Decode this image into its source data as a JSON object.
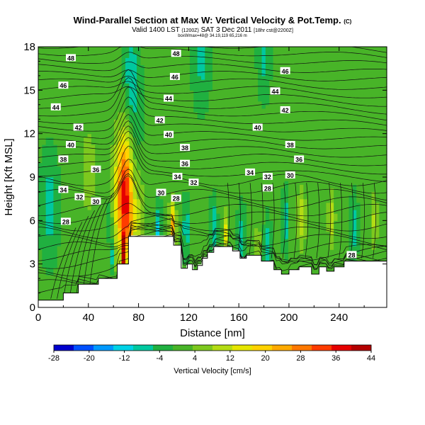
{
  "chart_data": {
    "type": "cross-section",
    "title": "Wind-Parallel Section at Max W: Vertical Velocity & Pot.Temp.",
    "title_mark": "(C)",
    "subtitle_main": "Valid 1400 LST",
    "subtitle_small1": "(1200Z)",
    "subtitle_day": "SAT 3 Dec 2011",
    "subtitle_small2": "[18hr cst@2200Z]",
    "subnote": "boxWmax=48@ 34.19,119 65,216 m",
    "xlabel": "Distance [nm]",
    "ylabel": "Height [Kft MSL]",
    "xlim": [
      0,
      278
    ],
    "ylim": [
      0,
      18
    ],
    "xticks": [
      "0",
      "40",
      "80",
      "120",
      "160",
      "200",
      "240"
    ],
    "yticks": [
      "0",
      "3",
      "6",
      "9",
      "12",
      "15",
      "18"
    ],
    "colorbar": {
      "label": "Vertical Velocity [cm/s]",
      "ticks": [
        "-28",
        "-20",
        "-12",
        "-4",
        "4",
        "12",
        "20",
        "28",
        "36",
        "44"
      ],
      "colors": [
        "#0000cd",
        "#0050ff",
        "#0099ff",
        "#00d2e6",
        "#00c8a0",
        "#20b040",
        "#48b428",
        "#7dc81e",
        "#b4dc14",
        "#e6e600",
        "#ffd200",
        "#ffaa00",
        "#ff7800",
        "#ff3c00",
        "#e60000",
        "#b40000"
      ]
    },
    "terrain": [
      [
        0,
        0.5
      ],
      [
        20,
        0.5
      ],
      [
        20,
        1
      ],
      [
        32,
        1
      ],
      [
        32,
        1.6
      ],
      [
        48,
        1.6
      ],
      [
        48,
        2
      ],
      [
        63,
        2
      ],
      [
        63,
        3
      ],
      [
        72,
        3
      ],
      [
        72,
        4.9
      ],
      [
        90,
        4.9
      ],
      [
        100,
        4.9
      ],
      [
        100,
        4.9
      ],
      [
        108,
        4.9
      ],
      [
        108,
        4.3
      ],
      [
        114,
        4.3
      ],
      [
        114,
        2.7
      ],
      [
        119,
        2.7
      ],
      [
        119,
        3.0
      ],
      [
        123,
        3.0
      ],
      [
        123,
        2.6
      ],
      [
        127,
        2.6
      ],
      [
        127,
        2.9
      ],
      [
        131,
        2.9
      ],
      [
        131,
        3.4
      ],
      [
        135,
        3.4
      ],
      [
        135,
        3.8
      ],
      [
        140,
        3.8
      ],
      [
        140,
        4.2
      ],
      [
        155,
        4.2
      ],
      [
        155,
        3.9
      ],
      [
        161,
        3.9
      ],
      [
        161,
        3.4
      ],
      [
        166,
        3.4
      ],
      [
        166,
        3.6
      ],
      [
        178,
        3.6
      ],
      [
        178,
        3.2
      ],
      [
        188,
        3.2
      ],
      [
        188,
        2.6
      ],
      [
        194,
        2.6
      ],
      [
        194,
        2.3
      ],
      [
        200,
        2.3
      ],
      [
        200,
        2.6
      ],
      [
        208,
        2.6
      ],
      [
        208,
        2.8
      ],
      [
        218,
        2.8
      ],
      [
        218,
        2.3
      ],
      [
        224,
        2.3
      ],
      [
        224,
        2.8
      ],
      [
        230,
        2.8
      ],
      [
        230,
        2.5
      ],
      [
        236,
        2.5
      ],
      [
        236,
        2.8
      ],
      [
        244,
        2.8
      ],
      [
        244,
        3.2
      ],
      [
        278,
        3.2
      ]
    ],
    "isentrope_labels": [
      {
        "text": "48",
        "x": 26,
        "y": 17.2
      },
      {
        "text": "48",
        "x": 110,
        "y": 17.5
      },
      {
        "text": "46",
        "x": 109,
        "y": 15.9
      },
      {
        "text": "46",
        "x": 197,
        "y": 16.3
      },
      {
        "text": "46",
        "x": 20,
        "y": 15.3
      },
      {
        "text": "44",
        "x": 14,
        "y": 13.8
      },
      {
        "text": "44",
        "x": 104,
        "y": 14.4
      },
      {
        "text": "44",
        "x": 189,
        "y": 14.9
      },
      {
        "text": "42",
        "x": 32,
        "y": 12.4
      },
      {
        "text": "42",
        "x": 97,
        "y": 12.9
      },
      {
        "text": "42",
        "x": 197,
        "y": 13.6
      },
      {
        "text": "40",
        "x": 26,
        "y": 11.2
      },
      {
        "text": "40",
        "x": 104,
        "y": 11.9
      },
      {
        "text": "40",
        "x": 175,
        "y": 12.4
      },
      {
        "text": "38",
        "x": 20,
        "y": 10.2
      },
      {
        "text": "38",
        "x": 117,
        "y": 11.0
      },
      {
        "text": "38",
        "x": 201,
        "y": 11.2
      },
      {
        "text": "36",
        "x": 46,
        "y": 9.5
      },
      {
        "text": "36",
        "x": 117,
        "y": 9.9
      },
      {
        "text": "36",
        "x": 208,
        "y": 10.2
      },
      {
        "text": "34",
        "x": 20,
        "y": 8.1
      },
      {
        "text": "34",
        "x": 111,
        "y": 9.0
      },
      {
        "text": "34",
        "x": 169,
        "y": 9.3
      },
      {
        "text": "32",
        "x": 33,
        "y": 7.6
      },
      {
        "text": "32",
        "x": 124,
        "y": 8.6
      },
      {
        "text": "32",
        "x": 183,
        "y": 9.0
      },
      {
        "text": "30",
        "x": 46,
        "y": 7.3
      },
      {
        "text": "30",
        "x": 98,
        "y": 7.9
      },
      {
        "text": "30",
        "x": 201,
        "y": 9.1
      },
      {
        "text": "28",
        "x": 22,
        "y": 5.9
      },
      {
        "text": "28",
        "x": 110,
        "y": 7.5
      },
      {
        "text": "28",
        "x": 183,
        "y": 8.2
      },
      {
        "text": "28",
        "x": 250,
        "y": 3.6
      }
    ],
    "w_features": [
      {
        "x": 71,
        "y": 7.8,
        "w": 35,
        "amp": 48
      },
      {
        "x": 68,
        "y": 3.8,
        "w": 3,
        "amp": 44
      },
      {
        "x": 75,
        "y": 8.4,
        "w": 20,
        "amp": -18
      },
      {
        "x": 77,
        "y": 3.2,
        "w": 6,
        "amp": -30
      },
      {
        "x": 58,
        "y": 3.6,
        "w": 4,
        "amp": -22
      },
      {
        "x": 57,
        "y": 6.0,
        "w": 6,
        "amp": -12
      },
      {
        "x": 76,
        "y": 12.0,
        "w": 30,
        "amp": -10
      },
      {
        "x": 74,
        "y": 16.5,
        "w": 20,
        "amp": -8
      },
      {
        "x": 96,
        "y": 5.5,
        "w": 8,
        "amp": -14
      },
      {
        "x": 106,
        "y": 6.0,
        "w": 8,
        "amp": 14
      },
      {
        "x": 108,
        "y": 5.3,
        "w": 10,
        "amp": 18
      },
      {
        "x": 118,
        "y": 5.5,
        "w": 10,
        "amp": -10
      },
      {
        "x": 150,
        "y": 5.1,
        "w": 8,
        "amp": 16
      },
      {
        "x": 140,
        "y": 5.6,
        "w": 10,
        "amp": -10
      },
      {
        "x": 162,
        "y": 4.8,
        "w": 12,
        "amp": -9
      },
      {
        "x": 183,
        "y": 4.4,
        "w": 10,
        "amp": -9
      },
      {
        "x": 175,
        "y": 4.2,
        "w": 8,
        "amp": 12
      },
      {
        "x": 210,
        "y": 6.2,
        "w": 14,
        "amp": 12
      },
      {
        "x": 197,
        "y": 6.0,
        "w": 10,
        "amp": -10
      },
      {
        "x": 234,
        "y": 6.2,
        "w": 12,
        "amp": 12
      },
      {
        "x": 252,
        "y": 5.5,
        "w": 12,
        "amp": -8
      },
      {
        "x": 268,
        "y": 6.0,
        "w": 14,
        "amp": 9
      },
      {
        "x": 9,
        "y": 7.0,
        "w": 25,
        "amp": -9
      },
      {
        "x": 40,
        "y": 9.4,
        "w": 30,
        "amp": 6
      },
      {
        "x": 130,
        "y": 17.6,
        "w": 25,
        "amp": -8
      },
      {
        "x": 180,
        "y": 17.5,
        "w": 18,
        "amp": -8
      }
    ]
  }
}
